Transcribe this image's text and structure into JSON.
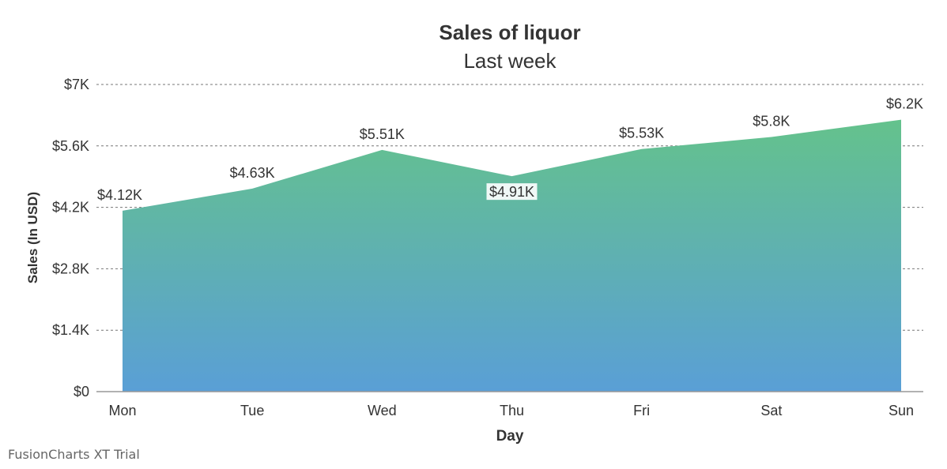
{
  "chart_data": {
    "type": "area",
    "title": "Sales of liquor",
    "subtitle": "Last week",
    "xlabel": "Day",
    "ylabel": "Sales (In USD)",
    "categories": [
      "Mon",
      "Tue",
      "Wed",
      "Thu",
      "Fri",
      "Sat",
      "Sun"
    ],
    "values": [
      4123,
      4626,
      5508,
      4910,
      5529,
      5803,
      6198
    ],
    "data_labels": [
      "$4.12K",
      "$4.63K",
      "$5.51K",
      "$4.91K",
      "$5.53K",
      "$5.8K",
      "$6.2K"
    ],
    "ylim": [
      0,
      7000
    ],
    "y_ticks": [
      0,
      1400,
      2800,
      4200,
      5600,
      7000
    ],
    "y_tick_labels": [
      "$0",
      "$1.4K",
      "$2.8K",
      "$4.2K",
      "$5.6K",
      "$7K"
    ],
    "grid": true,
    "gradient_colors": [
      "#64c28c",
      "#5a9fd6"
    ]
  },
  "watermark": "FusionCharts XT Trial"
}
